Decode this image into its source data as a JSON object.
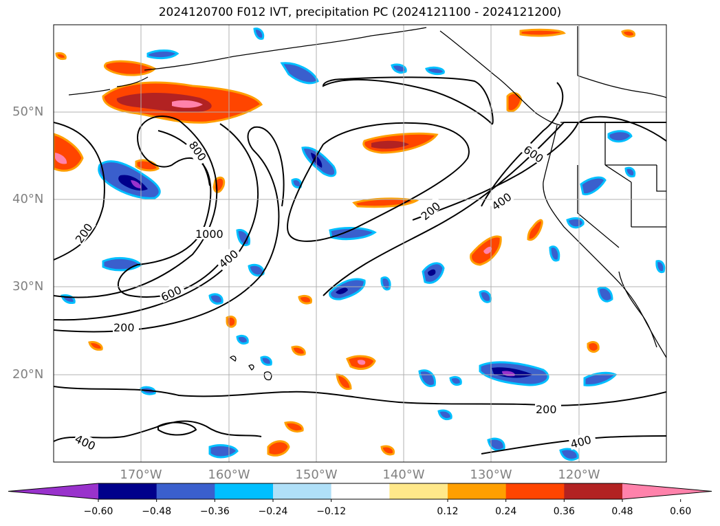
{
  "title": "2024120700 F012 IVT, precipitation PC (2024121100 - 2024121200)",
  "lat_labels": [
    "50°N",
    "40°N",
    "30°N",
    "20°N"
  ],
  "lon_labels": [
    "170°W",
    "160°W",
    "150°W",
    "140°W",
    "130°W",
    "120°W"
  ],
  "contour_labels": [
    "800",
    "1000",
    "400",
    "600",
    "200",
    "200",
    "200",
    "400",
    "600",
    "200",
    "400"
  ],
  "colorbar": {
    "ticks": [
      "−0.60",
      "−0.48",
      "−0.36",
      "−0.24",
      "−0.12",
      "0.12",
      "0.24",
      "0.36",
      "0.48",
      "0.60"
    ],
    "colors": [
      "#9932cc",
      "#00008b",
      "#3a5fcd",
      "#00bfff",
      "#b0e0f8",
      "#ffffff",
      "#ffe88a",
      "#ff9f00",
      "#ff4500",
      "#b22222",
      "#ff82ab"
    ]
  },
  "map": {
    "extent_lon": [
      -180,
      -110
    ],
    "extent_lat": [
      10,
      60
    ],
    "projection": "PlateCarree",
    "grid": true
  }
}
